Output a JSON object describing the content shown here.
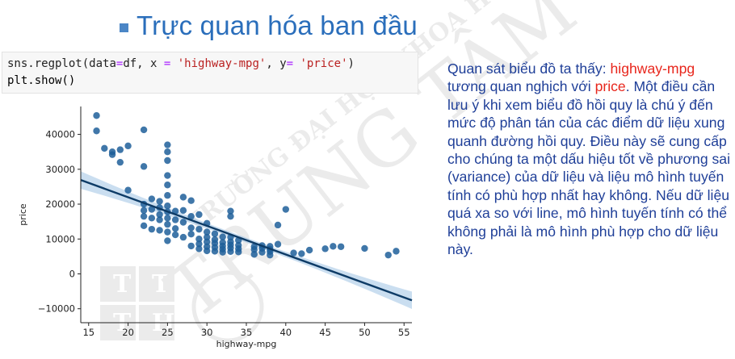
{
  "slide": {
    "title": "Trực quan hóa ban đầu",
    "accent_color": "#2a6ebb",
    "watermark_lines": [
      "TRƯỜNG ĐẠI HỌC KHOA HỌC TỰ NHIÊN",
      "TRUNG TÂM TIN HỌC"
    ],
    "watermark_logo_letters": [
      "T",
      "T",
      "T",
      "H"
    ]
  },
  "code": {
    "line1": {
      "fn": "sns.regplot",
      "p1": "(",
      "a1": "data",
      "eq1": "=",
      "a1v": "df, x ",
      "eq2": "=",
      "s1": " 'highway-mpg'",
      "a2": ", y",
      "eq3": "=",
      "s2": " 'price'",
      "p2": ")"
    },
    "line2": "plt.show()"
  },
  "description": {
    "s1": "Quan sát biểu đồ ta thấy: ",
    "h1": "highway-mpg",
    "s2": " tương quan nghịch với ",
    "h2": "price",
    "s3": ". Một điều cần lưu ý khi xem biểu đồ hồi quy là chú ý đến mức độ phân tán của các điểm dữ liệu xung quanh đường hồi quy. Điều này sẽ cung cấp cho chúng ta một dấu hiệu tốt về phương sai (variance) của dữ liệu và liệu mô hình tuyến tính có phù hợp nhất hay không. Nếu dữ liệu quá xa so với line, mô hình tuyến tính có thể không phải là mô hình phù hợp cho dữ liệu này.",
    "text_color": "#1f3f98",
    "highlight_color": "#e8261c"
  },
  "chart_data": {
    "type": "scatter",
    "xlabel": "highway-mpg",
    "ylabel": "price",
    "xlim": [
      14,
      56
    ],
    "ylim": [
      -14000,
      48000
    ],
    "x_ticks": [
      15,
      20,
      25,
      30,
      35,
      40,
      45,
      50,
      55
    ],
    "y_ticks": [
      -10000,
      0,
      10000,
      20000,
      30000,
      40000
    ],
    "y_tick_labels": [
      "−10000",
      "0",
      "10000",
      "20000",
      "30000",
      "40000"
    ],
    "point_color": "#1f5f9a",
    "line_color": "#0d3b66",
    "band_color": "#9ec3e4",
    "regression": {
      "slope": -821,
      "intercept": 38400
    },
    "band_halfwidth_at_ends": 2500,
    "band_halfwidth_at_center": 700,
    "points": [
      [
        16,
        45400
      ],
      [
        16,
        41000
      ],
      [
        17,
        36000
      ],
      [
        18,
        35000
      ],
      [
        18,
        34200
      ],
      [
        19,
        35600
      ],
      [
        19,
        32000
      ],
      [
        20,
        36700
      ],
      [
        20,
        24000
      ],
      [
        22,
        41300
      ],
      [
        22,
        30800
      ],
      [
        22,
        16500
      ],
      [
        22,
        18200
      ],
      [
        22,
        20000
      ],
      [
        22,
        13800
      ],
      [
        23,
        16000
      ],
      [
        23,
        18500
      ],
      [
        23,
        21500
      ],
      [
        23,
        12800
      ],
      [
        24,
        17000
      ],
      [
        24,
        19000
      ],
      [
        24,
        15500
      ],
      [
        24,
        12500
      ],
      [
        24,
        20800
      ],
      [
        25,
        37000
      ],
      [
        25,
        35000
      ],
      [
        25,
        32500
      ],
      [
        25,
        28200
      ],
      [
        25,
        25500
      ],
      [
        25,
        22500
      ],
      [
        25,
        19500
      ],
      [
        25,
        17800
      ],
      [
        25,
        16000
      ],
      [
        25,
        14200
      ],
      [
        25,
        12000
      ],
      [
        25,
        9500
      ],
      [
        26,
        15500
      ],
      [
        26,
        18000
      ],
      [
        26,
        13000
      ],
      [
        26,
        11200
      ],
      [
        27,
        22000
      ],
      [
        27,
        18200
      ],
      [
        27,
        14800
      ],
      [
        27,
        10500
      ],
      [
        28,
        21000
      ],
      [
        28,
        16500
      ],
      [
        28,
        13200
      ],
      [
        28,
        11400
      ],
      [
        28,
        8000
      ],
      [
        29,
        17000
      ],
      [
        29,
        12800
      ],
      [
        29,
        10000
      ],
      [
        29,
        8600
      ],
      [
        29,
        7200
      ],
      [
        30,
        14500
      ],
      [
        30,
        12000
      ],
      [
        30,
        10500
      ],
      [
        30,
        9200
      ],
      [
        30,
        7800
      ],
      [
        30,
        6600
      ],
      [
        31,
        11500
      ],
      [
        31,
        9800
      ],
      [
        31,
        8800
      ],
      [
        31,
        7600
      ],
      [
        31,
        6500
      ],
      [
        32,
        10600
      ],
      [
        32,
        9000
      ],
      [
        32,
        8000
      ],
      [
        32,
        7100
      ],
      [
        32,
        6200
      ],
      [
        33,
        18000
      ],
      [
        33,
        16500
      ],
      [
        33,
        10500
      ],
      [
        33,
        9200
      ],
      [
        33,
        8300
      ],
      [
        33,
        7400
      ],
      [
        33,
        6400
      ],
      [
        34,
        9600
      ],
      [
        34,
        8200
      ],
      [
        34,
        7200
      ],
      [
        34,
        6300
      ],
      [
        36,
        7800
      ],
      [
        36,
        7000
      ],
      [
        36,
        5600
      ],
      [
        37,
        8100
      ],
      [
        37,
        7300
      ],
      [
        37,
        6200
      ],
      [
        38,
        7900
      ],
      [
        38,
        7100
      ],
      [
        38,
        6400
      ],
      [
        38,
        5400
      ],
      [
        39,
        14000
      ],
      [
        39,
        8500
      ],
      [
        40,
        18500
      ],
      [
        41,
        6000
      ],
      [
        42,
        5800
      ],
      [
        43,
        6800
      ],
      [
        45,
        7200
      ],
      [
        46,
        7900
      ],
      [
        47,
        7800
      ],
      [
        50,
        7300
      ],
      [
        53,
        5400
      ],
      [
        54,
        6500
      ]
    ]
  }
}
